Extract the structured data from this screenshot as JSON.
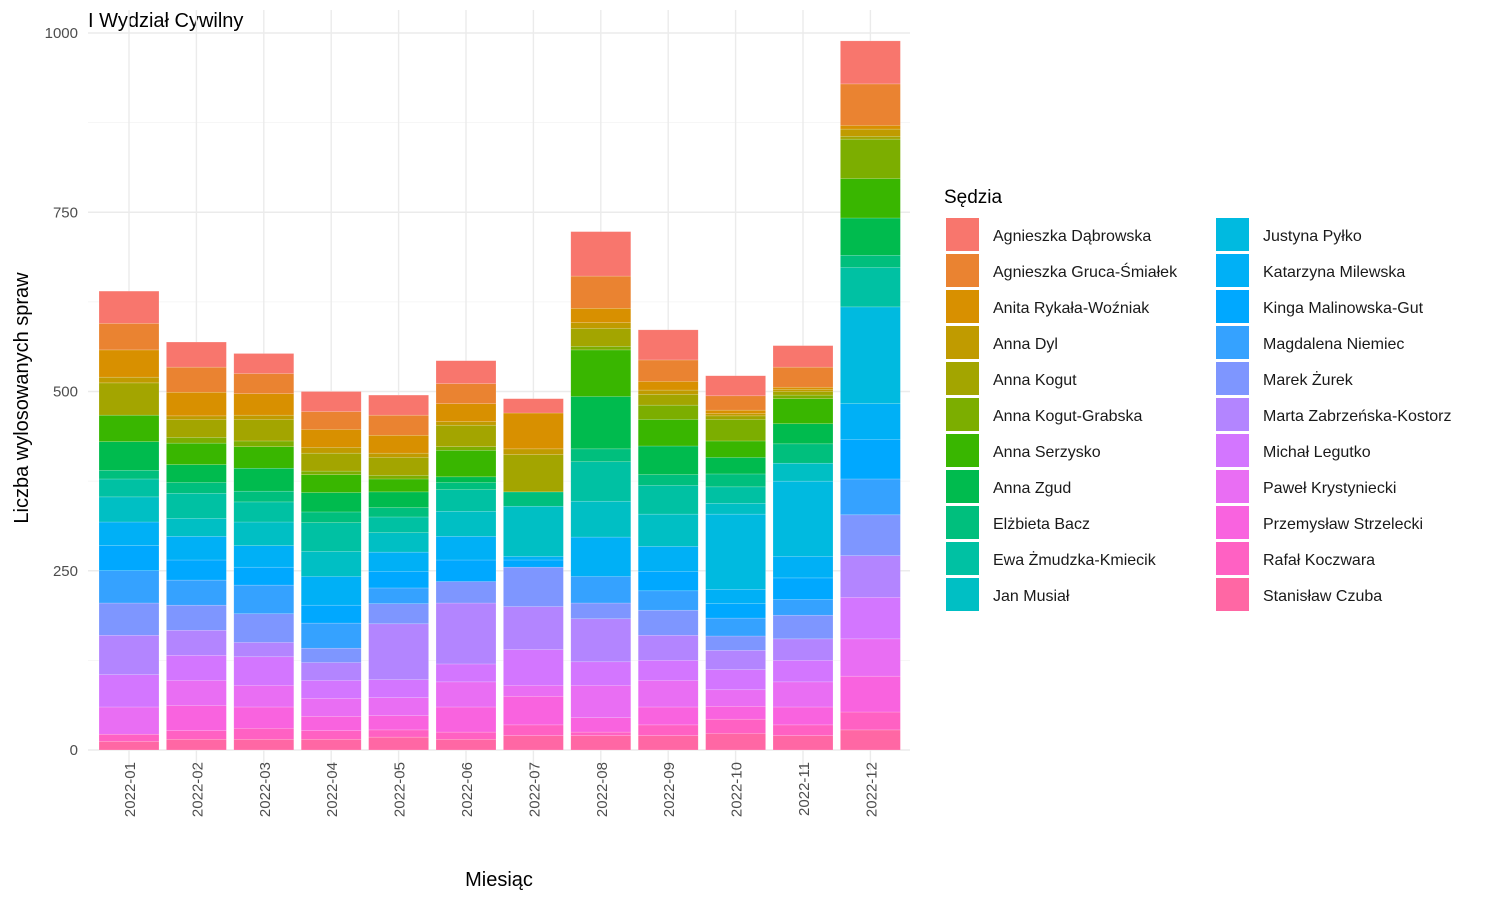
{
  "chart_data": {
    "type": "bar",
    "stacked": true,
    "title": "I Wydział Cywilny",
    "xlabel": "Miesiąc",
    "ylabel": "Liczba wylosowanych spraw",
    "ylim": [
      0,
      1000
    ],
    "yticks": [
      0,
      250,
      500,
      750,
      1000
    ],
    "grid": true,
    "legend_title": "Sędzia",
    "legend_placement": "right",
    "categories": [
      "2022-01",
      "2022-02",
      "2022-03",
      "2022-04",
      "2022-05",
      "2022-06",
      "2022-07",
      "2022-08",
      "2022-09",
      "2022-10",
      "2022-11",
      "2022-12"
    ],
    "series": [
      {
        "name": "Agnieszka Dąbrowska",
        "color": "#F8766D",
        "values": [
          45,
          35,
          28,
          28,
          28,
          32,
          20,
          62,
          42,
          28,
          30,
          60
        ]
      },
      {
        "name": "Agnieszka Gruca-Śmiałek",
        "color": "#EA8331",
        "values": [
          37,
          35,
          28,
          25,
          28,
          28,
          0,
          45,
          30,
          20,
          28,
          58
        ]
      },
      {
        "name": "Anita Rykała-Woźniak",
        "color": "#D89000",
        "values": [
          38,
          33,
          30,
          25,
          25,
          25,
          50,
          20,
          12,
          5,
          3,
          5
        ]
      },
      {
        "name": "Anna Dyl",
        "color": "#C09B00",
        "values": [
          8,
          5,
          6,
          8,
          6,
          5,
          8,
          8,
          6,
          3,
          3,
          10
        ]
      },
      {
        "name": "Anna Kogut",
        "color": "#A3A500",
        "values": [
          45,
          25,
          30,
          25,
          25,
          30,
          52,
          25,
          15,
          5,
          5,
          4
        ]
      },
      {
        "name": "Anna Kogut-Grabska",
        "color": "#7CAE00",
        "values": [
          0,
          8,
          8,
          5,
          5,
          5,
          0,
          5,
          20,
          30,
          5,
          55
        ]
      },
      {
        "name": "Anna Serzysko",
        "color": "#39B600",
        "values": [
          37,
          30,
          30,
          25,
          18,
          37,
          0,
          65,
          37,
          23,
          35,
          55
        ]
      },
      {
        "name": "Anna Zgud",
        "color": "#00BB4E",
        "values": [
          40,
          25,
          32,
          27,
          22,
          8,
          0,
          73,
          40,
          23,
          28,
          52
        ]
      },
      {
        "name": "Elżbieta Bacz",
        "color": "#00BF7D",
        "values": [
          12,
          15,
          15,
          15,
          13,
          10,
          20,
          18,
          15,
          18,
          27,
          17
        ]
      },
      {
        "name": "Ewa Żmudzka-Kmiecik",
        "color": "#00C1A3",
        "values": [
          25,
          35,
          28,
          40,
          22,
          30,
          0,
          55,
          40,
          23,
          0,
          55
        ]
      },
      {
        "name": "Jan Musiał",
        "color": "#00BFC4",
        "values": [
          35,
          25,
          33,
          35,
          27,
          35,
          70,
          50,
          45,
          15,
          25,
          0
        ]
      },
      {
        "name": "Justyna Pyłko",
        "color": "#00BAE0",
        "values": [
          0,
          0,
          0,
          0,
          0,
          0,
          0,
          0,
          0,
          105,
          105,
          135
        ]
      },
      {
        "name": "Katarzyna Milewska",
        "color": "#00B0F6",
        "values": [
          33,
          33,
          30,
          40,
          27,
          33,
          5,
          55,
          35,
          20,
          30,
          50
        ]
      },
      {
        "name": "Kinga Malinowska-Gut",
        "color": "#00A8FF",
        "values": [
          35,
          28,
          25,
          25,
          23,
          30,
          10,
          0,
          27,
          20,
          30,
          55
        ]
      },
      {
        "name": "Magdalena Niemiec",
        "color": "#35A2FF",
        "values": [
          45,
          35,
          40,
          35,
          22,
          0,
          0,
          37,
          27,
          25,
          22,
          50
        ]
      },
      {
        "name": "Marek Żurek",
        "color": "#7E96FF",
        "values": [
          45,
          35,
          40,
          20,
          28,
          30,
          55,
          22,
          35,
          20,
          33,
          57
        ]
      },
      {
        "name": "Marta Zabrzeńska-Kostorz",
        "color": "#B385FF",
        "values": [
          55,
          35,
          20,
          25,
          78,
          85,
          60,
          60,
          35,
          27,
          30,
          58
        ]
      },
      {
        "name": "Michał Legutko",
        "color": "#D376FF",
        "values": [
          45,
          35,
          40,
          25,
          25,
          25,
          50,
          33,
          28,
          28,
          30,
          58
        ]
      },
      {
        "name": "Paweł Krystyniecki",
        "color": "#E96EF3",
        "values": [
          38,
          35,
          30,
          25,
          25,
          35,
          15,
          45,
          37,
          23,
          35,
          52
        ]
      },
      {
        "name": "Przemysław Strzelecki",
        "color": "#F963DF",
        "values": [
          0,
          35,
          30,
          20,
          20,
          35,
          40,
          20,
          25,
          18,
          25,
          50
        ]
      },
      {
        "name": "Rafał Koczwara",
        "color": "#FF61C3",
        "values": [
          10,
          12,
          15,
          12,
          10,
          10,
          15,
          5,
          15,
          20,
          15,
          25
        ]
      },
      {
        "name": "Stanisław Czuba",
        "color": "#FF67A4",
        "values": [
          12,
          15,
          15,
          15,
          18,
          15,
          20,
          20,
          20,
          23,
          20,
          28
        ]
      }
    ]
  }
}
